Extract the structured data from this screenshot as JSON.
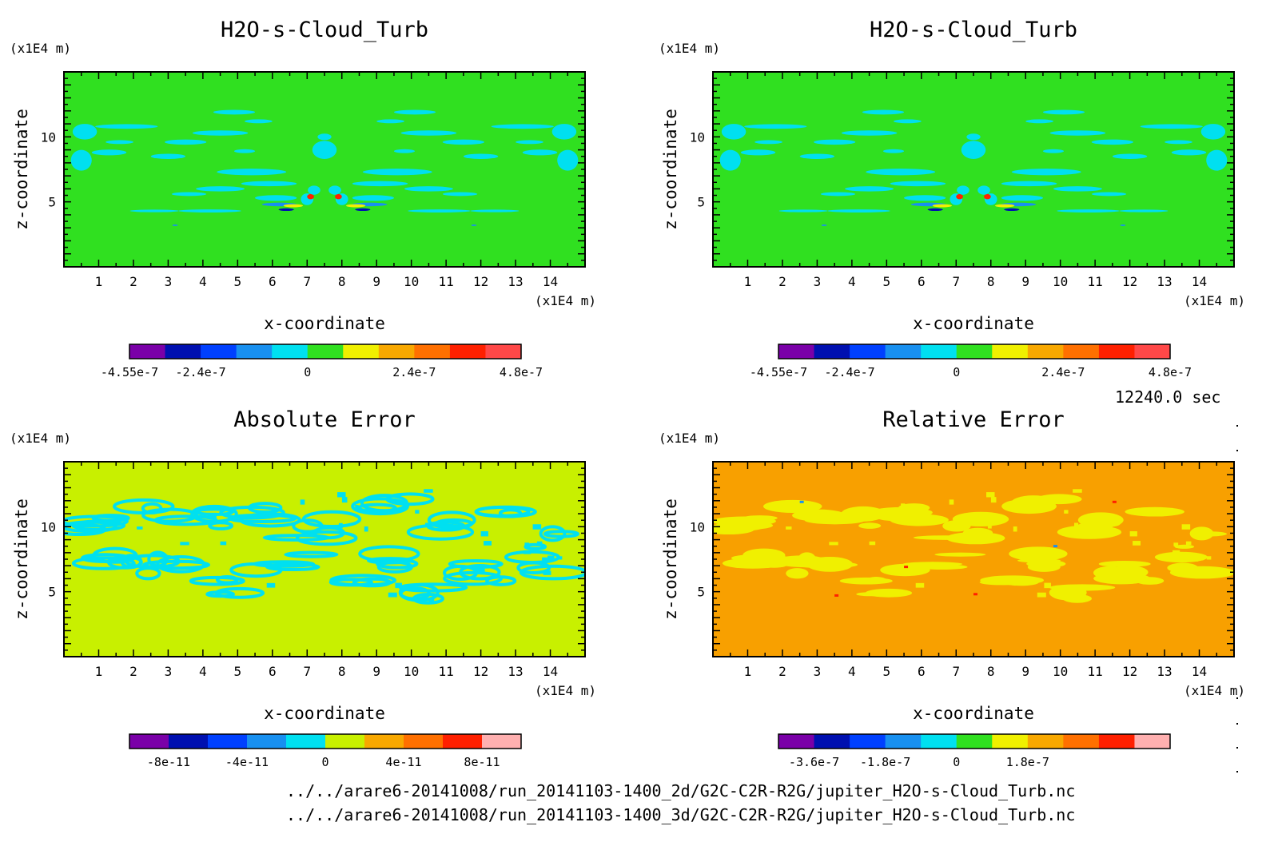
{
  "figure": {
    "time_label": "12240.0 sec",
    "files": [
      "../../arare6-20141008/run_20141103-1400_2d/G2C-C2R-R2G/jupiter_H2O-s-Cloud_Turb.nc",
      "../../arare6-20141008/run_20141103-1400_3d/G2C-C2R-R2G/jupiter_H2O-s-Cloud_Turb.nc"
    ]
  },
  "chart_data": [
    {
      "type": "heatmap",
      "title": "H2O-s-Cloud_Turb",
      "xlabel": "x-coordinate",
      "ylabel": "z-coordinate",
      "x_unit": "(x1E4 m)",
      "y_unit": "(x1E4 m)",
      "xlim": [
        0,
        15
      ],
      "ylim": [
        0,
        15
      ],
      "x_ticks": [
        1,
        2,
        3,
        4,
        5,
        6,
        7,
        8,
        9,
        10,
        11,
        12,
        13,
        14
      ],
      "y_ticks": [
        5,
        10
      ],
      "colorbar": {
        "colors": [
          "#7a00a8",
          "#0010b0",
          "#0040ff",
          "#1890f0",
          "#00e0f0",
          "#30e020",
          "#f0f000",
          "#f8a800",
          "#ff7000",
          "#ff2000",
          "#ff4848"
        ],
        "labels": [
          "-4.55e-7",
          "-2.4e-7",
          "0",
          "2.4e-7",
          "4.8e-7"
        ],
        "label_positions": [
          0,
          2,
          5,
          8,
          11
        ]
      },
      "background_color": "#30e020",
      "field": "symmetric_plume"
    },
    {
      "type": "heatmap",
      "title": "H2O-s-Cloud_Turb",
      "xlabel": "x-coordinate",
      "ylabel": "z-coordinate",
      "x_unit": "(x1E4 m)",
      "y_unit": "(x1E4 m)",
      "xlim": [
        0,
        15
      ],
      "ylim": [
        0,
        15
      ],
      "x_ticks": [
        1,
        2,
        3,
        4,
        5,
        6,
        7,
        8,
        9,
        10,
        11,
        12,
        13,
        14
      ],
      "y_ticks": [
        5,
        10
      ],
      "colorbar": {
        "colors": [
          "#7a00a8",
          "#0010b0",
          "#0040ff",
          "#1890f0",
          "#00e0f0",
          "#30e020",
          "#f0f000",
          "#f8a800",
          "#ff7000",
          "#ff2000",
          "#ff4848"
        ],
        "labels": [
          "-4.55e-7",
          "-2.4e-7",
          "0",
          "2.4e-7",
          "4.8e-7"
        ],
        "label_positions": [
          0,
          2,
          5,
          8,
          11
        ]
      },
      "background_color": "#30e020",
      "field": "symmetric_plume"
    },
    {
      "type": "heatmap",
      "title": "Absolute Error",
      "xlabel": "x-coordinate",
      "ylabel": "z-coordinate",
      "x_unit": "(x1E4 m)",
      "y_unit": "(x1E4 m)",
      "xlim": [
        0,
        15
      ],
      "ylim": [
        0,
        15
      ],
      "x_ticks": [
        1,
        2,
        3,
        4,
        5,
        6,
        7,
        8,
        9,
        10,
        11,
        12,
        13,
        14
      ],
      "y_ticks": [
        5,
        10
      ],
      "colorbar": {
        "colors": [
          "#7a00a8",
          "#0010b0",
          "#0040ff",
          "#1890f0",
          "#00e0f0",
          "#c8f000",
          "#f8a800",
          "#ff7000",
          "#ff2000",
          "#ffb0b0"
        ],
        "labels": [
          "-8e-11",
          "-4e-11",
          "0",
          "4e-11",
          "8e-11"
        ],
        "label_positions": [
          1,
          3,
          5,
          7,
          9
        ]
      },
      "background_color": "#c8f000",
      "field": "error_blobs"
    },
    {
      "type": "heatmap",
      "title": "Relative Error",
      "xlabel": "x-coordinate",
      "ylabel": "z-coordinate",
      "x_unit": "(x1E4 m)",
      "y_unit": "(x1E4 m)",
      "xlim": [
        0,
        15
      ],
      "ylim": [
        0,
        15
      ],
      "x_ticks": [
        1,
        2,
        3,
        4,
        5,
        6,
        7,
        8,
        9,
        10,
        11,
        12,
        13,
        14
      ],
      "y_ticks": [
        5,
        10
      ],
      "colorbar": {
        "colors": [
          "#7a00a8",
          "#0010b0",
          "#0040ff",
          "#1890f0",
          "#00e0f0",
          "#30e020",
          "#f0f000",
          "#f8a800",
          "#ff7000",
          "#ff2000",
          "#ffb0b0"
        ],
        "labels": [
          "-3.6e-7",
          "-1.8e-7",
          "0",
          "1.8e-7"
        ],
        "label_positions": [
          1,
          3,
          5,
          7
        ]
      },
      "background_color": "#f8a000",
      "field": "error_blobs"
    }
  ]
}
